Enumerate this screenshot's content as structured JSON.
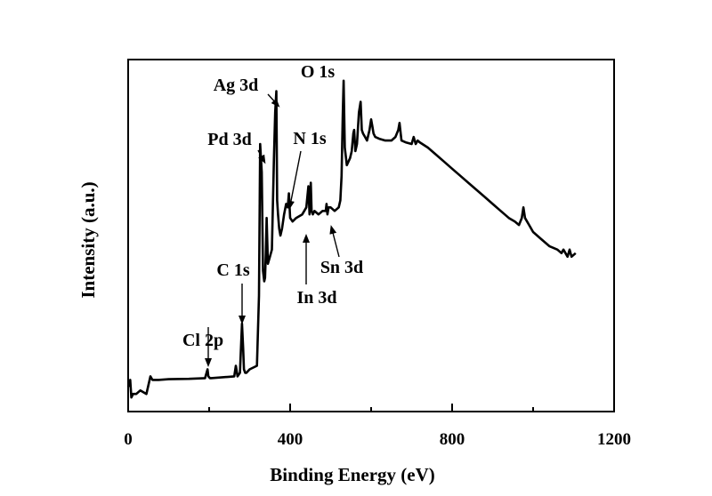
{
  "chart_data": {
    "type": "line",
    "xlabel": "Binding Energy (eV)",
    "ylabel": "Intensity (a.u.)",
    "xlim": [
      0,
      1200
    ],
    "ylim": [
      0,
      100
    ],
    "x_ticks": [
      0,
      400,
      800,
      1200
    ],
    "y_ticks_shown": false,
    "grid": false,
    "legend": "none",
    "line_color": "#000000",
    "series": [
      {
        "x": [
          0,
          5,
          8,
          12,
          20,
          30,
          45,
          55,
          60,
          75,
          100,
          150,
          190,
          196,
          198,
          202,
          205,
          240,
          262,
          266,
          270,
          276,
          281,
          284,
          286,
          289,
          292,
          300,
          318,
          323,
          326,
          330,
          333,
          336,
          338,
          340,
          342,
          345,
          350,
          355,
          360,
          363,
          366,
          368,
          370,
          373,
          376,
          380,
          385,
          390,
          394,
          397,
          400,
          406,
          415,
          430,
          440,
          445,
          448,
          451,
          453,
          456,
          460,
          470,
          480,
          488,
          490,
          492,
          495,
          500,
          510,
          520,
          524,
          527,
          530,
          532,
          535,
          540,
          548,
          552,
          556,
          558,
          561,
          565,
          570,
          574,
          577,
          580,
          585,
          590,
          596,
          600,
          603,
          606,
          610,
          620,
          635,
          650,
          660,
          667,
          670,
          675,
          685,
          700,
          705,
          710,
          715,
          720,
          740,
          760,
          780,
          800,
          820,
          840,
          860,
          880,
          900,
          920,
          940,
          955,
          965,
          972,
          976,
          980,
          985,
          990,
          1000,
          1020,
          1040,
          1060,
          1070,
          1075,
          1080,
          1085,
          1090,
          1095,
          1100,
          1105
        ],
        "values": [
          7,
          9,
          4,
          5,
          5,
          6,
          5,
          10,
          9,
          9,
          9.2,
          9.3,
          9.5,
          12,
          10,
          9.5,
          9.5,
          9.8,
          10,
          13,
          10,
          11,
          25,
          18,
          12,
          11,
          11,
          12,
          13,
          33,
          76,
          68,
          40,
          37,
          38,
          45,
          55,
          42,
          44,
          46,
          72,
          85,
          91,
          60,
          56,
          52,
          50,
          52,
          56,
          59,
          58,
          62,
          55,
          54,
          55,
          56,
          58,
          64,
          56,
          65,
          57,
          56,
          57,
          56,
          57,
          57,
          59,
          56,
          58,
          58,
          57,
          58,
          60,
          67,
          84,
          94,
          75,
          70,
          72,
          74,
          79,
          80,
          74,
          76,
          85,
          88,
          80,
          79,
          78,
          77,
          80,
          83,
          81,
          79,
          78,
          77.5,
          77,
          77,
          78,
          80,
          82,
          77,
          76.5,
          76,
          78,
          76,
          77,
          76.5,
          75,
          73,
          71,
          69,
          67,
          65,
          63,
          61,
          59,
          57,
          55,
          54,
          53,
          55,
          58,
          55,
          54,
          53,
          51,
          49,
          47,
          46,
          45,
          46,
          45,
          44,
          46,
          44,
          44.5,
          45
        ]
      }
    ],
    "annotations": [
      {
        "text": "Cl 2p",
        "x": 198,
        "y": 12,
        "arrow": "down"
      },
      {
        "text": "C 1s",
        "x": 281,
        "y": 25,
        "arrow": "down"
      },
      {
        "text": "Pd 3d",
        "x": 335,
        "y": 77,
        "arrow": "down"
      },
      {
        "text": "Ag 3d",
        "x": 368,
        "y": 91,
        "arrow": "down"
      },
      {
        "text": "N 1s",
        "x": 397,
        "y": 59,
        "arrow": "down"
      },
      {
        "text": "O 1s",
        "x": 532,
        "y": 94,
        "arrow": "none"
      },
      {
        "text": "In 3d",
        "x": 440,
        "y": 56,
        "arrow": "up"
      },
      {
        "text": "Sn 3d",
        "x": 487,
        "y": 57,
        "arrow": "up"
      }
    ]
  }
}
